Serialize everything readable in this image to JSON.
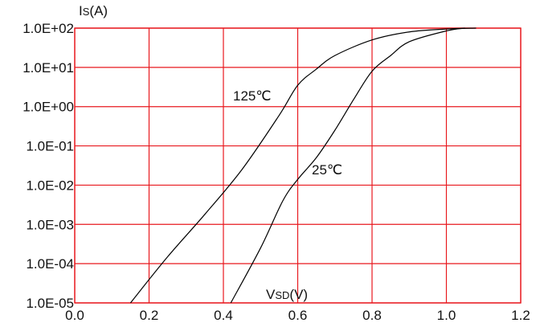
{
  "chart_data": {
    "type": "line",
    "title": "",
    "ylabel_main": "I",
    "ylabel_sub": "S",
    "ylabel_unit": "(A)",
    "xlabel_main": "V",
    "xlabel_sub": "SD",
    "xlabel_unit": "(V)",
    "xlim": [
      0.0,
      1.2
    ],
    "ylim": [
      1e-05,
      100
    ],
    "y_scale": "log",
    "grid": true,
    "x_ticks": [
      "0.0",
      "0.2",
      "0.4",
      "0.6",
      "0.8",
      "1.0",
      "1.2"
    ],
    "y_ticks": [
      "1.0E+02",
      "1.0E+01",
      "1.0E+00",
      "1.0E-01",
      "1.0E-02",
      "1.0E-03",
      "1.0E-04",
      "1.0E-05"
    ],
    "series": [
      {
        "name": "125℃",
        "x": [
          0.15,
          0.25,
          0.35,
          0.45,
          0.55,
          0.6,
          0.65,
          0.7,
          0.8,
          0.9,
          1.0,
          1.08
        ],
        "y": [
          1e-05,
          0.00015,
          0.0018,
          0.025,
          0.6,
          3.5,
          9,
          20,
          50,
          80,
          95,
          100
        ]
      },
      {
        "name": "25℃",
        "x": [
          0.42,
          0.5,
          0.56,
          0.6,
          0.65,
          0.7,
          0.75,
          0.8,
          0.85,
          0.9,
          1.0,
          1.05
        ],
        "y": [
          1e-05,
          0.00025,
          0.004,
          0.014,
          0.05,
          0.25,
          1.5,
          8,
          20,
          45,
          85,
          100
        ]
      }
    ]
  },
  "colors": {
    "grid": "#e8191f",
    "curve": "#000000",
    "text": "#111111"
  }
}
